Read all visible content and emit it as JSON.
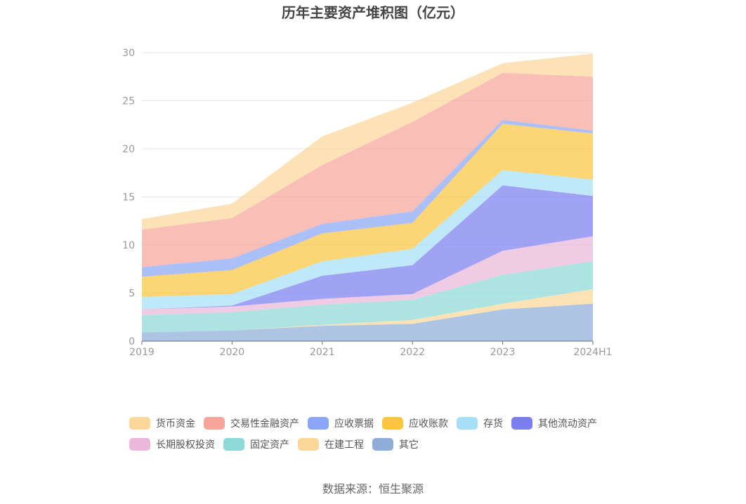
{
  "chart_data": {
    "type": "area",
    "stacked": true,
    "title": "历年主要资产堆积图（亿元）",
    "categories": [
      "2019",
      "2020",
      "2021",
      "2022",
      "2023",
      "2024H1"
    ],
    "ylim": [
      0,
      30
    ],
    "yticks": [
      0,
      5,
      10,
      15,
      20,
      25,
      30
    ],
    "grid": true,
    "legend_position": "bottom",
    "series": [
      {
        "name": "其它",
        "color": "#8fadd9",
        "values": [
          0.9,
          1.1,
          1.6,
          1.8,
          3.3,
          3.9
        ]
      },
      {
        "name": "在建工程",
        "color": "#fbd899",
        "values": [
          0.0,
          0.0,
          0.1,
          0.4,
          0.6,
          1.5
        ]
      },
      {
        "name": "固定资产",
        "color": "#8dd9d7",
        "values": [
          1.8,
          1.9,
          2.1,
          2.1,
          3.0,
          2.9
        ]
      },
      {
        "name": "长期股权投资",
        "color": "#e9b8da",
        "values": [
          0.6,
          0.6,
          0.6,
          0.6,
          2.5,
          2.6
        ]
      },
      {
        "name": "其他流动资产",
        "color": "#7b7ef0",
        "values": [
          0.0,
          0.1,
          2.4,
          3.0,
          6.8,
          4.2
        ]
      },
      {
        "name": "存货",
        "color": "#a6dff7",
        "values": [
          1.3,
          1.2,
          1.5,
          1.7,
          1.6,
          1.7
        ]
      },
      {
        "name": "应收账款",
        "color": "#fbc540",
        "values": [
          2.1,
          2.5,
          2.9,
          2.7,
          4.8,
          4.8
        ]
      },
      {
        "name": "应收票据",
        "color": "#8ba6f6",
        "values": [
          1.0,
          1.2,
          1.0,
          1.2,
          0.4,
          0.3
        ]
      },
      {
        "name": "交易性金融资产",
        "color": "#f7a59a",
        "values": [
          3.9,
          4.2,
          6.1,
          9.3,
          4.9,
          5.6
        ]
      },
      {
        "name": "货币资金",
        "color": "#fbd79a",
        "values": [
          1.1,
          1.5,
          3.0,
          2.0,
          1.0,
          2.4
        ]
      }
    ]
  },
  "legend": {
    "row1": [
      "货币资金",
      "交易性金融资产",
      "应收票据",
      "应收账款",
      "存货",
      "其他流动资产"
    ],
    "row2": [
      "长期股权投资",
      "固定资产",
      "在建工程",
      "其它"
    ]
  },
  "source": "数据来源：恒生聚源"
}
